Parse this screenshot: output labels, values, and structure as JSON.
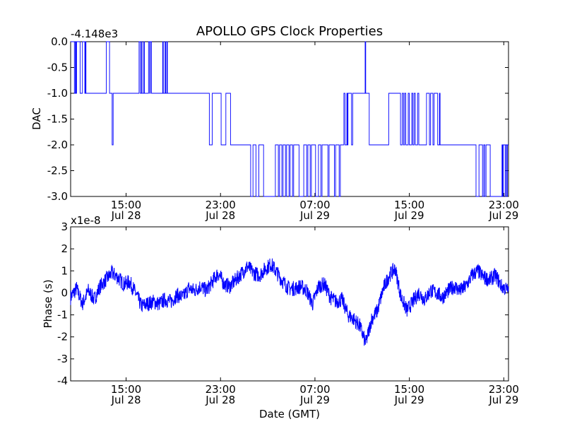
{
  "figure": {
    "title": "APOLLO GPS Clock Properties",
    "xlabel": "Date (GMT)",
    "line_color": "#0000ff"
  },
  "chart_data": [
    {
      "type": "line",
      "title": "APOLLO GPS Clock Properties",
      "ylabel": "DAC",
      "offset_text": "-4.148e3",
      "ylim": [
        -3.0,
        0.0
      ],
      "yticks": [
        "0.0",
        "-0.5",
        "-1.0",
        "-1.5",
        "-2.0",
        "-2.5",
        "-3.0"
      ],
      "xlim_hours": [
        10.0,
        23.5
      ],
      "xticks": [
        {
          "time": "15:00",
          "date": "Jul 28",
          "hours": 15
        },
        {
          "time": "23:00",
          "date": "Jul 28",
          "hours": 23
        },
        {
          "time": "07:00",
          "date": "Jul 29",
          "hours": 31
        },
        {
          "time": "15:00",
          "date": "Jul 29",
          "hours": 39
        },
        {
          "time": "23:00",
          "date": "Jul 29",
          "hours": 47
        }
      ],
      "xlim": [
        10.3,
        47.4
      ],
      "x_unit": "hours since Jul 28 00:00",
      "series": [
        {
          "values": [
            [
              10.3,
              0.0
            ],
            [
              10.6,
              0.0
            ],
            [
              10.62,
              -1.0
            ],
            [
              10.7,
              0.0
            ],
            [
              10.75,
              -1.0
            ],
            [
              10.8,
              0.0
            ],
            [
              11.1,
              -1.0
            ],
            [
              11.3,
              0.0
            ],
            [
              11.5,
              -1.0
            ],
            [
              11.55,
              0.0
            ],
            [
              11.6,
              -1.0
            ],
            [
              13.3,
              -1.0
            ],
            [
              13.32,
              0.0
            ],
            [
              13.6,
              -1.0
            ],
            [
              13.8,
              -1.0
            ],
            [
              13.82,
              -2.0
            ],
            [
              13.9,
              -1.0
            ],
            [
              15.0,
              -1.0
            ],
            [
              16.0,
              -1.0
            ],
            [
              16.1,
              0.0
            ],
            [
              16.2,
              -1.0
            ],
            [
              16.3,
              0.0
            ],
            [
              16.35,
              -1.0
            ],
            [
              16.5,
              0.0
            ],
            [
              16.55,
              -1.0
            ],
            [
              16.9,
              0.0
            ],
            [
              17.0,
              -1.0
            ],
            [
              17.05,
              0.0
            ],
            [
              17.15,
              -1.0
            ],
            [
              18.0,
              -1.0
            ],
            [
              18.1,
              0.0
            ],
            [
              18.15,
              -1.0
            ],
            [
              18.3,
              0.0
            ],
            [
              18.35,
              -1.0
            ],
            [
              18.45,
              0.0
            ],
            [
              18.5,
              -1.0
            ],
            [
              22.0,
              -1.0
            ],
            [
              22.05,
              -2.0
            ],
            [
              22.3,
              -1.0
            ],
            [
              23.0,
              -1.0
            ],
            [
              23.05,
              -2.0
            ],
            [
              23.4,
              -2.0
            ],
            [
              23.45,
              -1.0
            ],
            [
              23.8,
              -1.0
            ],
            [
              23.85,
              -2.0
            ],
            [
              25.5,
              -2.0
            ],
            [
              25.55,
              -3.0
            ],
            [
              25.75,
              -2.0
            ],
            [
              26.0,
              -3.0
            ],
            [
              26.25,
              -2.0
            ],
            [
              26.6,
              -2.0
            ],
            [
              26.65,
              -3.0
            ],
            [
              27.6,
              -3.0
            ],
            [
              27.65,
              -2.0
            ],
            [
              27.9,
              -3.0
            ],
            [
              28.0,
              -2.0
            ],
            [
              28.2,
              -3.0
            ],
            [
              28.3,
              -2.0
            ],
            [
              28.5,
              -3.0
            ],
            [
              28.6,
              -2.0
            ],
            [
              28.8,
              -3.0
            ],
            [
              28.9,
              -2.0
            ],
            [
              29.1,
              -3.0
            ],
            [
              29.2,
              -2.0
            ],
            [
              29.6,
              -2.0
            ],
            [
              29.65,
              -3.0
            ],
            [
              30.0,
              -3.0
            ],
            [
              30.05,
              -2.0
            ],
            [
              30.3,
              -3.0
            ],
            [
              30.4,
              -2.0
            ],
            [
              30.6,
              -3.0
            ],
            [
              30.7,
              -2.0
            ],
            [
              31.0,
              -2.0
            ],
            [
              31.05,
              -3.0
            ],
            [
              31.3,
              -2.0
            ],
            [
              31.5,
              -3.0
            ],
            [
              31.6,
              -2.0
            ],
            [
              32.0,
              -2.0
            ],
            [
              32.1,
              -3.0
            ],
            [
              32.2,
              -2.0
            ],
            [
              32.6,
              -2.0
            ],
            [
              32.65,
              -3.0
            ],
            [
              32.75,
              -2.0
            ],
            [
              33.0,
              -2.0
            ],
            [
              33.05,
              -3.0
            ],
            [
              33.15,
              -2.0
            ],
            [
              33.4,
              -2.0
            ],
            [
              33.45,
              -1.0
            ],
            [
              33.55,
              -2.0
            ],
            [
              33.7,
              -1.0
            ],
            [
              33.75,
              -2.0
            ],
            [
              33.8,
              -1.0
            ],
            [
              34.1,
              -2.0
            ],
            [
              34.2,
              -1.0
            ],
            [
              35.2,
              -1.0
            ],
            [
              35.25,
              0.0
            ],
            [
              35.3,
              -1.0
            ],
            [
              35.55,
              -1.0
            ],
            [
              35.6,
              -2.0
            ],
            [
              37.2,
              -2.0
            ],
            [
              37.25,
              -1.0
            ],
            [
              38.2,
              -1.0
            ],
            [
              38.25,
              -2.0
            ],
            [
              38.4,
              -1.0
            ],
            [
              38.5,
              -2.0
            ],
            [
              38.6,
              -1.0
            ],
            [
              38.7,
              -2.0
            ],
            [
              38.9,
              -1.0
            ],
            [
              39.0,
              -2.0
            ],
            [
              39.2,
              -1.0
            ],
            [
              39.3,
              -2.0
            ],
            [
              39.4,
              -1.0
            ],
            [
              39.5,
              -2.0
            ],
            [
              39.7,
              -1.0
            ],
            [
              39.8,
              -2.0
            ],
            [
              40.4,
              -2.0
            ],
            [
              40.45,
              -1.0
            ],
            [
              40.7,
              -2.0
            ],
            [
              40.8,
              -1.0
            ],
            [
              41.0,
              -2.0
            ],
            [
              41.1,
              -1.0
            ],
            [
              41.35,
              -1.0
            ],
            [
              41.4,
              -2.0
            ],
            [
              41.55,
              -1.0
            ],
            [
              41.6,
              -2.0
            ],
            [
              44.6,
              -2.0
            ],
            [
              44.65,
              -3.0
            ],
            [
              44.9,
              -2.0
            ],
            [
              45.2,
              -3.0
            ],
            [
              45.3,
              -2.0
            ],
            [
              45.4,
              -3.0
            ],
            [
              45.5,
              -2.0
            ],
            [
              45.8,
              -2.0
            ],
            [
              45.85,
              -3.0
            ],
            [
              46.8,
              -3.0
            ],
            [
              46.85,
              -2.0
            ],
            [
              46.9,
              -3.0
            ],
            [
              46.95,
              -2.0
            ],
            [
              47.1,
              -2.0
            ],
            [
              47.12,
              -3.0
            ],
            [
              47.15,
              -2.0
            ],
            [
              47.25,
              -3.0
            ],
            [
              47.3,
              -2.0
            ],
            [
              47.4,
              -2.0
            ]
          ]
        }
      ]
    },
    {
      "type": "line",
      "ylabel": "Phase (s)",
      "offset_text": "x1e-8",
      "ylim": [
        -4,
        3
      ],
      "yticks": [
        "3",
        "2",
        "1",
        "0",
        "-1",
        "-2",
        "-3",
        "-4"
      ],
      "xticks": [
        {
          "time": "15:00",
          "date": "Jul 28",
          "hours": 15
        },
        {
          "time": "23:00",
          "date": "Jul 28",
          "hours": 23
        },
        {
          "time": "07:00",
          "date": "Jul 29",
          "hours": 31
        },
        {
          "time": "15:00",
          "date": "Jul 29",
          "hours": 39
        },
        {
          "time": "23:00",
          "date": "Jul 29",
          "hours": 47
        }
      ],
      "xlim": [
        10.3,
        47.4
      ],
      "x_unit": "hours since Jul 28 00:00",
      "series": [
        {
          "values": [
            [
              10.3,
              -0.2
            ],
            [
              10.8,
              0.2
            ],
            [
              11.3,
              -0.5
            ],
            [
              11.8,
              0.1
            ],
            [
              12.3,
              -0.3
            ],
            [
              12.8,
              0.3
            ],
            [
              13.3,
              0.6
            ],
            [
              13.8,
              0.9
            ],
            [
              14.3,
              0.7
            ],
            [
              14.8,
              0.4
            ],
            [
              15.3,
              0.5
            ],
            [
              15.8,
              0.0
            ],
            [
              16.3,
              -0.6
            ],
            [
              16.8,
              -0.5
            ],
            [
              17.3,
              -0.4
            ],
            [
              17.8,
              -0.5
            ],
            [
              18.3,
              -0.3
            ],
            [
              18.8,
              -0.4
            ],
            [
              19.3,
              -0.1
            ],
            [
              19.8,
              -0.2
            ],
            [
              20.3,
              0.2
            ],
            [
              20.8,
              0.1
            ],
            [
              21.3,
              0.3
            ],
            [
              21.8,
              0.1
            ],
            [
              22.3,
              0.5
            ],
            [
              22.8,
              0.9
            ],
            [
              23.3,
              0.4
            ],
            [
              23.8,
              0.3
            ],
            [
              24.3,
              0.6
            ],
            [
              24.8,
              0.9
            ],
            [
              25.3,
              1.2
            ],
            [
              25.8,
              0.9
            ],
            [
              26.3,
              0.8
            ],
            [
              26.8,
              1.1
            ],
            [
              27.3,
              1.3
            ],
            [
              27.8,
              0.9
            ],
            [
              28.3,
              0.5
            ],
            [
              28.8,
              0.2
            ],
            [
              29.3,
              0.2
            ],
            [
              29.8,
              0.3
            ],
            [
              30.3,
              0.1
            ],
            [
              30.8,
              -0.5
            ],
            [
              31.3,
              0.3
            ],
            [
              31.8,
              0.4
            ],
            [
              32.3,
              -0.2
            ],
            [
              32.8,
              -0.4
            ],
            [
              33.3,
              -0.3
            ],
            [
              33.8,
              -1.0
            ],
            [
              34.3,
              -1.2
            ],
            [
              34.8,
              -1.5
            ],
            [
              35.3,
              -2.3
            ],
            [
              35.8,
              -1.2
            ],
            [
              36.3,
              -0.8
            ],
            [
              36.8,
              0.2
            ],
            [
              37.3,
              0.8
            ],
            [
              37.8,
              1.1
            ],
            [
              38.3,
              -0.2
            ],
            [
              38.8,
              -0.8
            ],
            [
              39.3,
              -0.4
            ],
            [
              39.8,
              0.0
            ],
            [
              40.3,
              -0.3
            ],
            [
              40.8,
              0.1
            ],
            [
              41.3,
              0.0
            ],
            [
              41.8,
              -0.2
            ],
            [
              42.3,
              0.1
            ],
            [
              42.8,
              0.3
            ],
            [
              43.3,
              0.1
            ],
            [
              43.8,
              0.3
            ],
            [
              44.3,
              0.8
            ],
            [
              44.8,
              1.0
            ],
            [
              45.3,
              0.7
            ],
            [
              45.8,
              0.6
            ],
            [
              46.3,
              0.8
            ],
            [
              46.8,
              0.3
            ],
            [
              47.4,
              0.1
            ]
          ],
          "noise_amplitude": 0.35
        }
      ]
    }
  ]
}
